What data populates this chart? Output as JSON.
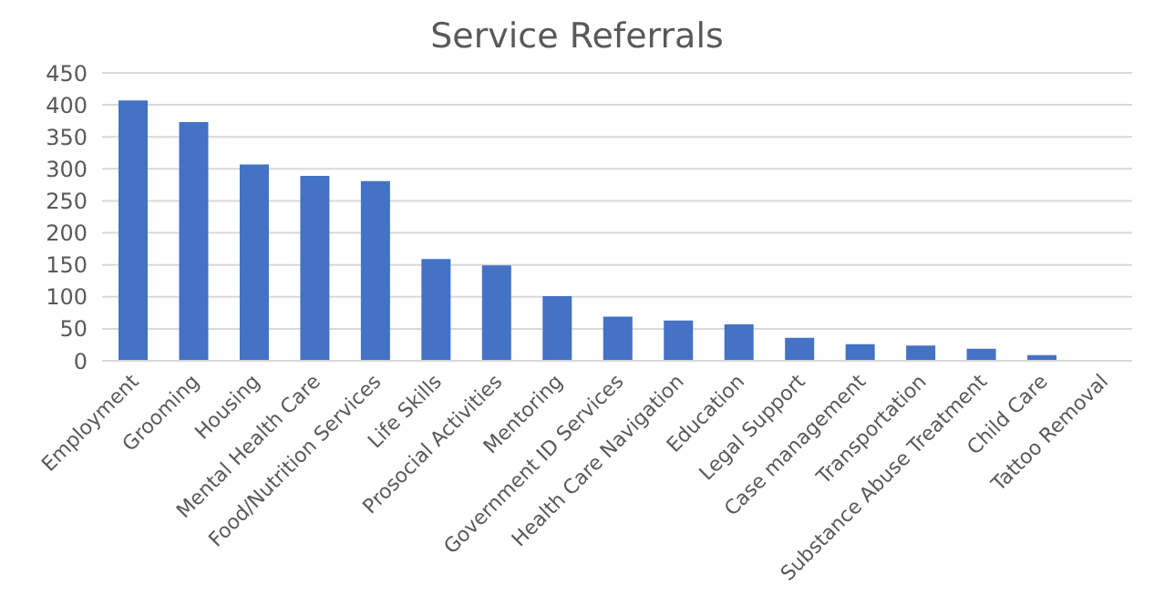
{
  "chart_data": {
    "type": "bar",
    "title": "Service Referrals",
    "categories": [
      "Employment",
      "Grooming",
      "Housing",
      "Mental Health Care",
      "Food/Nutrition Services",
      "Life Skills",
      "Prosocial Activities",
      "Mentoring",
      "Government ID Services",
      "Health Care Navigation",
      "Education",
      "Legal Support",
      "Case management",
      "Transportation",
      "Substance Abuse Treatment",
      "Child Care",
      "Tattoo Removal"
    ],
    "values": [
      407,
      373,
      307,
      289,
      281,
      159,
      149,
      101,
      69,
      63,
      57,
      36,
      26,
      24,
      19,
      9,
      0
    ],
    "color": "#4472c4",
    "ylim": [
      0,
      450
    ],
    "yticks": [
      0,
      50,
      100,
      150,
      200,
      250,
      300,
      350,
      400,
      450
    ],
    "grid": "y"
  }
}
